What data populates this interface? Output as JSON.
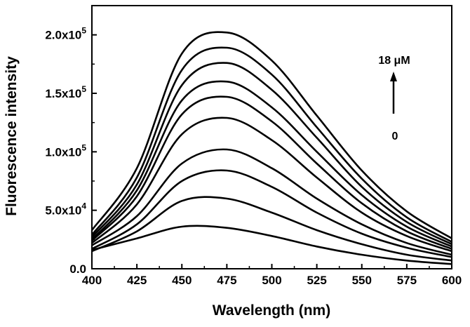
{
  "chart_data": {
    "type": "line",
    "title": "",
    "xlabel": "Wavelength (nm)",
    "ylabel": "Fluorescence intensity",
    "xlim": [
      400,
      600
    ],
    "ylim": [
      0,
      225000
    ],
    "x_ticks": [
      400,
      425,
      450,
      475,
      500,
      525,
      550,
      575,
      600
    ],
    "x_tick_labels": [
      "400",
      "425",
      "450",
      "475",
      "500",
      "525",
      "550",
      "575",
      "600"
    ],
    "y_ticks": [
      0,
      50000,
      100000,
      150000,
      200000
    ],
    "y_tick_labels": [
      {
        "mantissa": "0.0",
        "exponent": ""
      },
      {
        "mantissa": "5.0x10",
        "exponent": "4"
      },
      {
        "mantissa": "1.0x10",
        "exponent": "5"
      },
      {
        "mantissa": "1.5x10",
        "exponent": "5"
      },
      {
        "mantissa": "2.0x10",
        "exponent": "5"
      }
    ],
    "grid": false,
    "legend": "none",
    "line_color": "#000000",
    "annotations": {
      "top_label": "18 μM",
      "bottom_label": "0",
      "arrow": "up"
    },
    "x": [
      400,
      425,
      450,
      475,
      500,
      525,
      550,
      575,
      600
    ],
    "series": [
      {
        "values": [
          16000,
          26000,
          36000,
          35000,
          28000,
          19000,
          12000,
          7000,
          4000
        ]
      },
      {
        "values": [
          15000,
          32000,
          58000,
          60000,
          48000,
          33000,
          21000,
          12000,
          7000
        ]
      },
      {
        "values": [
          17000,
          38000,
          75000,
          84000,
          70000,
          48000,
          30000,
          18000,
          10000
        ]
      },
      {
        "values": [
          20000,
          45000,
          90000,
          102000,
          86000,
          60000,
          38000,
          22000,
          12000
        ]
      },
      {
        "values": [
          22000,
          55000,
          115000,
          129000,
          110000,
          78000,
          48000,
          28000,
          15000
        ]
      },
      {
        "values": [
          24000,
          62000,
          132000,
          147000,
          126000,
          90000,
          56000,
          32000,
          17000
        ]
      },
      {
        "values": [
          25000,
          67000,
          144000,
          160000,
          138000,
          100000,
          63000,
          36000,
          19000
        ]
      },
      {
        "values": [
          27000,
          72000,
          157000,
          176000,
          153000,
          112000,
          70000,
          40000,
          21000
        ]
      },
      {
        "values": [
          29000,
          78000,
          170000,
          189000,
          166000,
          121000,
          77000,
          44000,
          23000
        ]
      },
      {
        "values": [
          33000,
          86000,
          184000,
          202000,
          178000,
          131000,
          84000,
          49000,
          26000
        ]
      }
    ]
  }
}
